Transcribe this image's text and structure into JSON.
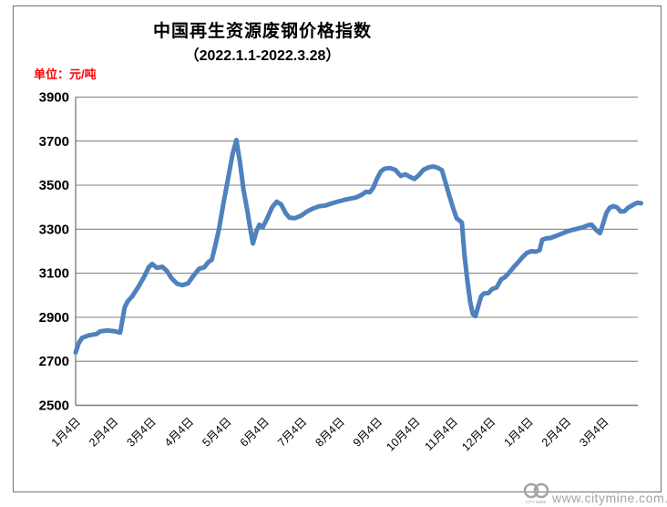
{
  "header": {
    "title": "中国再生资源废钢价格指数",
    "subtitle": "（2022.1.1-2022.3.28）",
    "unit_label": "单位：元/吨"
  },
  "watermark": {
    "logo_text": "CITY MINE",
    "site_url": "www.citymine.com.cn"
  },
  "colors": {
    "line": "#4F81BD",
    "grid": "#8f8f8f",
    "axis": "#808080",
    "outer_border": "#808080",
    "unit_text": "#ff0000",
    "watermark": "#a3a3a3"
  },
  "chart_data": {
    "type": "line",
    "title": "中国再生资源废钢价格指数（2022.1.1-2022.3.28）",
    "ylabel": "元/吨",
    "xlabel": "",
    "ylim": [
      2500,
      3900
    ],
    "y_tick_step": 200,
    "grid": true,
    "legend": "none",
    "y_ticks": [
      3900,
      3700,
      3500,
      3300,
      3100,
      2900,
      2700,
      2500
    ],
    "x_ticks": [
      "1月4日",
      "2月4日",
      "3月4日",
      "4月4日",
      "5月4日",
      "6月4日",
      "7月4日",
      "8月4日",
      "9月4日",
      "10月4日",
      "11月4日",
      "12月4日",
      "1月4日",
      "2月4日",
      "3月4日"
    ],
    "x_note": "point x values are fractional month-tick indices (0 = first 1月4日 tick, 14 = last 3月4日 tick)",
    "series": [
      {
        "name": "废钢价格指数",
        "color": "#4F81BD",
        "points": [
          [
            0.0,
            2740
          ],
          [
            0.08,
            2782
          ],
          [
            0.17,
            2806
          ],
          [
            0.35,
            2818
          ],
          [
            0.55,
            2824
          ],
          [
            0.65,
            2836
          ],
          [
            0.85,
            2840
          ],
          [
            1.05,
            2836
          ],
          [
            1.18,
            2830
          ],
          [
            1.3,
            2945
          ],
          [
            1.38,
            2972
          ],
          [
            1.5,
            2995
          ],
          [
            1.67,
            3040
          ],
          [
            1.82,
            3085
          ],
          [
            1.94,
            3128
          ],
          [
            2.03,
            3142
          ],
          [
            2.15,
            3125
          ],
          [
            2.3,
            3129
          ],
          [
            2.42,
            3110
          ],
          [
            2.54,
            3078
          ],
          [
            2.69,
            3052
          ],
          [
            2.83,
            3046
          ],
          [
            2.98,
            3054
          ],
          [
            3.12,
            3088
          ],
          [
            3.27,
            3120
          ],
          [
            3.41,
            3127
          ],
          [
            3.51,
            3149
          ],
          [
            3.61,
            3162
          ],
          [
            3.7,
            3225
          ],
          [
            3.8,
            3300
          ],
          [
            3.92,
            3420
          ],
          [
            4.04,
            3530
          ],
          [
            4.16,
            3640
          ],
          [
            4.26,
            3705
          ],
          [
            4.36,
            3600
          ],
          [
            4.45,
            3480
          ],
          [
            4.55,
            3385
          ],
          [
            4.62,
            3310
          ],
          [
            4.7,
            3235
          ],
          [
            4.79,
            3290
          ],
          [
            4.87,
            3320
          ],
          [
            4.96,
            3308
          ],
          [
            5.08,
            3350
          ],
          [
            5.21,
            3400
          ],
          [
            5.33,
            3425
          ],
          [
            5.45,
            3412
          ],
          [
            5.57,
            3372
          ],
          [
            5.67,
            3352
          ],
          [
            5.81,
            3350
          ],
          [
            5.98,
            3362
          ],
          [
            6.13,
            3380
          ],
          [
            6.29,
            3394
          ],
          [
            6.46,
            3404
          ],
          [
            6.63,
            3408
          ],
          [
            6.8,
            3418
          ],
          [
            6.97,
            3426
          ],
          [
            7.14,
            3434
          ],
          [
            7.31,
            3440
          ],
          [
            7.43,
            3444
          ],
          [
            7.58,
            3456
          ],
          [
            7.7,
            3470
          ],
          [
            7.8,
            3468
          ],
          [
            7.89,
            3488
          ],
          [
            7.99,
            3530
          ],
          [
            8.09,
            3562
          ],
          [
            8.18,
            3574
          ],
          [
            8.33,
            3578
          ],
          [
            8.47,
            3570
          ],
          [
            8.62,
            3542
          ],
          [
            8.74,
            3549
          ],
          [
            8.86,
            3538
          ],
          [
            8.98,
            3528
          ],
          [
            9.1,
            3546
          ],
          [
            9.22,
            3570
          ],
          [
            9.37,
            3582
          ],
          [
            9.49,
            3585
          ],
          [
            9.61,
            3578
          ],
          [
            9.71,
            3568
          ],
          [
            9.81,
            3510
          ],
          [
            9.9,
            3455
          ],
          [
            10.0,
            3400
          ],
          [
            10.1,
            3350
          ],
          [
            10.17,
            3340
          ],
          [
            10.24,
            3330
          ],
          [
            10.31,
            3180
          ],
          [
            10.39,
            3060
          ],
          [
            10.46,
            2970
          ],
          [
            10.53,
            2915
          ],
          [
            10.6,
            2905
          ],
          [
            10.68,
            2955
          ],
          [
            10.75,
            2995
          ],
          [
            10.82,
            3008
          ],
          [
            10.94,
            3010
          ],
          [
            11.04,
            3028
          ],
          [
            11.16,
            3035
          ],
          [
            11.28,
            3072
          ],
          [
            11.38,
            3082
          ],
          [
            11.48,
            3100
          ],
          [
            11.6,
            3125
          ],
          [
            11.72,
            3148
          ],
          [
            11.84,
            3172
          ],
          [
            11.96,
            3192
          ],
          [
            12.08,
            3200
          ],
          [
            12.2,
            3198
          ],
          [
            12.3,
            3205
          ],
          [
            12.37,
            3252
          ],
          [
            12.47,
            3258
          ],
          [
            12.59,
            3260
          ],
          [
            12.71,
            3268
          ],
          [
            12.86,
            3278
          ],
          [
            13.0,
            3288
          ],
          [
            13.15,
            3296
          ],
          [
            13.29,
            3302
          ],
          [
            13.44,
            3308
          ],
          [
            13.58,
            3318
          ],
          [
            13.68,
            3320
          ],
          [
            13.8,
            3296
          ],
          [
            13.9,
            3282
          ],
          [
            13.99,
            3330
          ],
          [
            14.07,
            3375
          ],
          [
            14.16,
            3398
          ],
          [
            14.26,
            3405
          ],
          [
            14.36,
            3398
          ],
          [
            14.45,
            3380
          ],
          [
            14.55,
            3382
          ],
          [
            14.65,
            3398
          ],
          [
            14.77,
            3410
          ],
          [
            14.89,
            3420
          ],
          [
            14.99,
            3418
          ]
        ]
      }
    ]
  }
}
